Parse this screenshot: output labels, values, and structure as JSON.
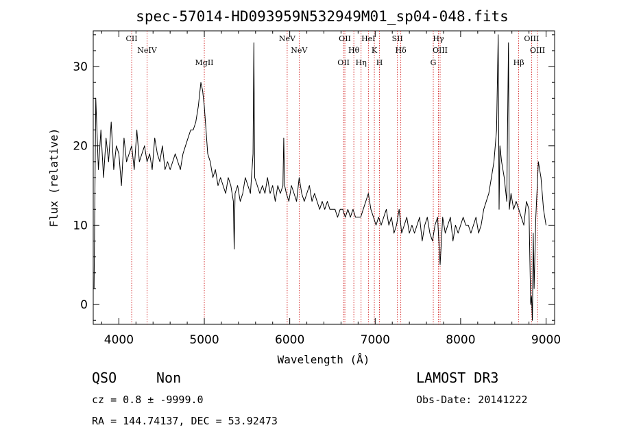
{
  "chart_data": {
    "type": "line",
    "title": "spec-57014-HD093959N532949M01_sp04-048.fits",
    "xlabel": "Wavelength (Å)",
    "ylabel": "Flux (relative)",
    "xlim": [
      3700,
      9100
    ],
    "ylim": [
      -2.5,
      34.5
    ],
    "x_ticks": [
      4000,
      5000,
      6000,
      7000,
      8000,
      9000
    ],
    "y_ticks": [
      0,
      10,
      20,
      30
    ],
    "grid": false,
    "line_color": "#000000",
    "marker_color": "#cc0000",
    "series": [
      {
        "x": [
          3710,
          3730,
          3760,
          3790,
          3820,
          3850,
          3880,
          3910,
          3940,
          3970,
          4000,
          4030,
          4060,
          4090,
          4120,
          4150,
          4180,
          4210,
          4240,
          4270,
          4300,
          4330,
          4360,
          4390,
          4420,
          4450,
          4480,
          4510,
          4540,
          4570,
          4600,
          4630,
          4660,
          4690,
          4720,
          4750,
          4780,
          4810,
          4840,
          4870,
          4900,
          4930,
          4960,
          4980,
          5000,
          5020,
          5040,
          5070,
          5100,
          5130,
          5160,
          5190,
          5220,
          5250,
          5280,
          5310,
          5340,
          5350,
          5360,
          5390,
          5420,
          5450,
          5480,
          5510,
          5540,
          5570,
          5580,
          5590,
          5620,
          5650,
          5680,
          5710,
          5740,
          5770,
          5800,
          5830,
          5860,
          5890,
          5920,
          5930,
          5940,
          5960,
          5990,
          6020,
          6050,
          6080,
          6110,
          6140,
          6170,
          6200,
          6230,
          6260,
          6290,
          6320,
          6350,
          6380,
          6410,
          6440,
          6470,
          6500,
          6530,
          6560,
          6590,
          6620,
          6650,
          6680,
          6710,
          6740,
          6770,
          6800,
          6830,
          6860,
          6890,
          6920,
          6950,
          6980,
          7010,
          7040,
          7070,
          7100,
          7130,
          7160,
          7190,
          7220,
          7250,
          7280,
          7310,
          7340,
          7370,
          7400,
          7430,
          7460,
          7490,
          7520,
          7550,
          7580,
          7610,
          7640,
          7670,
          7700,
          7730,
          7760,
          7790,
          7820,
          7850,
          7880,
          7910,
          7940,
          7970,
          8000,
          8030,
          8060,
          8090,
          8120,
          8150,
          8180,
          8210,
          8240,
          8270,
          8300,
          8330,
          8360,
          8390,
          8420,
          8440,
          8450,
          8460,
          8480,
          8510,
          8540,
          8560,
          8570,
          8590,
          8620,
          8650,
          8680,
          8710,
          8740,
          8770,
          8800,
          8820,
          8830,
          8840,
          8850,
          8860,
          8880,
          8910,
          8940,
          8970,
          9000
        ],
        "y": [
          2,
          26,
          17,
          22,
          16,
          21,
          18,
          23,
          17,
          20,
          19,
          15,
          21,
          18,
          19,
          20,
          17,
          22,
          18,
          19,
          20,
          18,
          19,
          17,
          21,
          19,
          18,
          20,
          17,
          18,
          17,
          18,
          19,
          18,
          17,
          19,
          20,
          21,
          22,
          22,
          23,
          25,
          28,
          27,
          25,
          22,
          19,
          18,
          16,
          17,
          15,
          16,
          15,
          14,
          16,
          15,
          13,
          7,
          14,
          15,
          13,
          14,
          16,
          15,
          14,
          19,
          33,
          16,
          15,
          14,
          15,
          14,
          16,
          14,
          15,
          13,
          15,
          14,
          15,
          21,
          15,
          14,
          13,
          15,
          14,
          13,
          16,
          14,
          13,
          14,
          15,
          13,
          14,
          13,
          12,
          13,
          12,
          13,
          12,
          12,
          12,
          11,
          12,
          12,
          11,
          12,
          11,
          12,
          11,
          11,
          11,
          12,
          13,
          14,
          12,
          11,
          10,
          11,
          10,
          11,
          12,
          10,
          11,
          9,
          10,
          12,
          9,
          10,
          11,
          9,
          10,
          9,
          10,
          11,
          8,
          10,
          11,
          9,
          8,
          10,
          11,
          5,
          11,
          9,
          10,
          11,
          8,
          10,
          9,
          10,
          11,
          10,
          10,
          9,
          10,
          11,
          9,
          10,
          12,
          13,
          14,
          16,
          18,
          22,
          34,
          12,
          20,
          18,
          16,
          13,
          33,
          12,
          14,
          12,
          13,
          12,
          11,
          10,
          13,
          12,
          0,
          1,
          -2,
          9,
          2,
          11,
          18,
          16,
          12,
          10
        ]
      }
    ]
  },
  "lines_top": [
    {
      "x": 4150,
      "label": "CII"
    },
    {
      "x": 4330,
      "label": "NeIV"
    },
    {
      "x": 5000,
      "label": "MgII"
    },
    {
      "x": 5970,
      "label": "NeV"
    },
    {
      "x": 6110,
      "label": "NeV"
    },
    {
      "x": 6630,
      "label": "OII"
    },
    {
      "x": 6645,
      "label": "OII"
    },
    {
      "x": 6750,
      "label": "Hθ"
    },
    {
      "x": 6835,
      "label": "Hη"
    },
    {
      "x": 6920,
      "label": "HeI"
    },
    {
      "x": 6990,
      "label": "K"
    },
    {
      "x": 7050,
      "label": "H"
    },
    {
      "x": 7260,
      "label": "SII"
    },
    {
      "x": 7300,
      "label": "Hδ"
    },
    {
      "x": 7680,
      "label": "G"
    },
    {
      "x": 7740,
      "label": "Hγ"
    },
    {
      "x": 7760,
      "label": "OIII"
    },
    {
      "x": 8680,
      "label": "Hβ"
    },
    {
      "x": 8830,
      "label": "OIII"
    },
    {
      "x": 8900,
      "label": "OIII"
    }
  ],
  "footer": {
    "class": "QSO",
    "subclass": "Non",
    "cz": "cz = 0.8 ± -9999.0",
    "radec": "RA = 144.74137, DEC =  53.92473",
    "survey": "LAMOST DR3",
    "obs_date": "Obs-Date: 20141222"
  }
}
